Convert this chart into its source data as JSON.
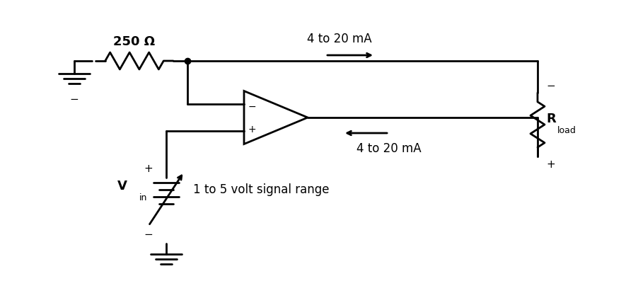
{
  "bg_color": "#ffffff",
  "line_color": "#000000",
  "line_width": 2.0,
  "fig_width": 9.03,
  "fig_height": 4.21,
  "dpi": 100,
  "resistor_250_label": "250 Ω",
  "rload_label": "R",
  "rload_sub": "load",
  "vin_label": "V",
  "vin_sub": "in",
  "label_4to20_top": "4 to 20 mA",
  "label_4to20_bottom": "4 to 20 mA",
  "label_signal": "1 to 5 volt signal range",
  "minus_top": "−",
  "plus_top": "+",
  "plus_bottom": "+",
  "minus_rload_top": "−",
  "plus_rload_bottom": "+"
}
